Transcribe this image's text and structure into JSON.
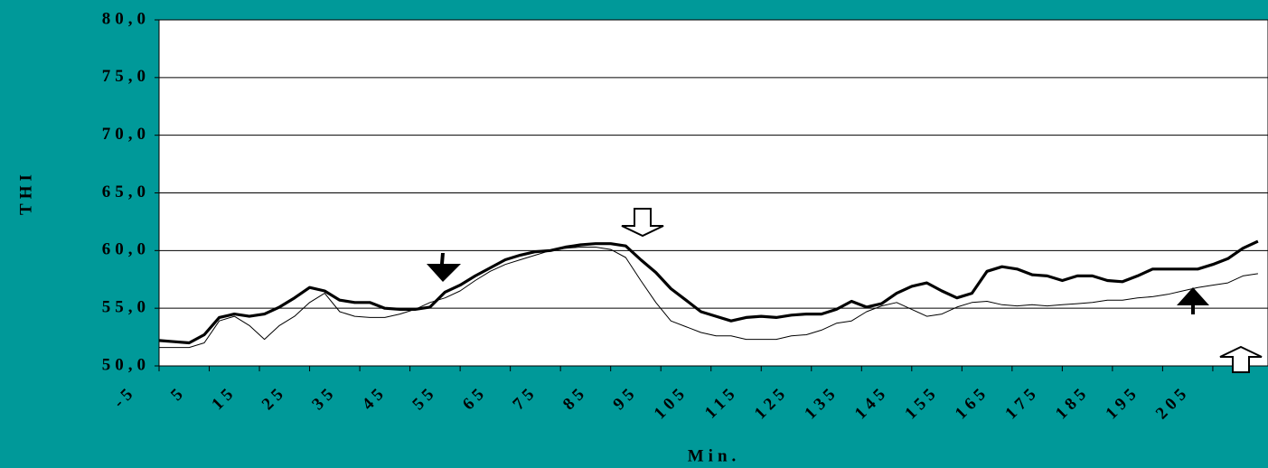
{
  "chart_data": {
    "type": "line",
    "xlabel": "Min.",
    "ylabel": "THI",
    "x": [
      -5,
      -2,
      1,
      4,
      7,
      10,
      13,
      16,
      19,
      22,
      25,
      28,
      31,
      34,
      37,
      40,
      43,
      46,
      49,
      52,
      55,
      58,
      61,
      64,
      67,
      70,
      73,
      76,
      79,
      82,
      85,
      88,
      91,
      94,
      97,
      100,
      103,
      106,
      109,
      112,
      115,
      118,
      121,
      124,
      127,
      130,
      133,
      136,
      139,
      142,
      145,
      148,
      151,
      154,
      157,
      160,
      163,
      166,
      169,
      172,
      175,
      178,
      181,
      184,
      187,
      190,
      193,
      196,
      199,
      202,
      205,
      208,
      211,
      214
    ],
    "series": [
      {
        "color": "#000000",
        "width": 3.2,
        "values": [
          52.2,
          52.1,
          52.0,
          52.7,
          54.2,
          54.5,
          54.3,
          54.5,
          55.1,
          55.9,
          56.8,
          56.5,
          55.7,
          55.5,
          55.5,
          55.0,
          54.9,
          54.9,
          55.1,
          56.4,
          57.0,
          57.8,
          58.5,
          59.2,
          59.6,
          59.9,
          60.0,
          60.3,
          60.5,
          60.6,
          60.6,
          60.4,
          59.2,
          58.1,
          56.7,
          55.7,
          54.7,
          54.3,
          53.9,
          54.2,
          54.3,
          54.2,
          54.4,
          54.5,
          54.5,
          54.9,
          55.6,
          55.1,
          55.4,
          56.3,
          56.9,
          57.2,
          56.5,
          55.9,
          56.3,
          58.2,
          58.6,
          58.4,
          57.9,
          57.8,
          57.4,
          57.8,
          57.8,
          57.4,
          57.3,
          57.8,
          58.4,
          58.4,
          58.4,
          58.4,
          58.8,
          59.3,
          60.2,
          60.8
        ]
      },
      {
        "color": "#000000",
        "width": 1,
        "values": [
          51.6,
          51.6,
          51.6,
          52.0,
          53.9,
          54.3,
          53.5,
          52.3,
          53.5,
          54.3,
          55.5,
          56.3,
          54.7,
          54.3,
          54.2,
          54.2,
          54.5,
          54.9,
          55.5,
          55.9,
          56.5,
          57.4,
          58.2,
          58.8,
          59.2,
          59.6,
          60.0,
          60.2,
          60.3,
          60.3,
          60.1,
          59.4,
          57.4,
          55.5,
          53.9,
          53.4,
          52.9,
          52.6,
          52.6,
          52.3,
          52.3,
          52.3,
          52.6,
          52.7,
          53.1,
          53.7,
          53.9,
          54.7,
          55.2,
          55.5,
          54.9,
          54.3,
          54.5,
          55.1,
          55.5,
          55.6,
          55.3,
          55.2,
          55.3,
          55.2,
          55.3,
          55.4,
          55.5,
          55.7,
          55.7,
          55.9,
          56.0,
          56.2,
          56.5,
          56.8,
          57.0,
          57.2,
          57.8,
          58.0
        ]
      }
    ],
    "xlim": [
      -5,
      216
    ],
    "xticks": [
      -5,
      5,
      15,
      25,
      35,
      45,
      55,
      65,
      75,
      85,
      95,
      105,
      115,
      125,
      135,
      145,
      155,
      165,
      175,
      185,
      195,
      205
    ],
    "ylim": [
      50,
      80
    ],
    "yticks": [
      {
        "value": 50,
        "label": "50,0"
      },
      {
        "value": 55,
        "label": "55,0"
      },
      {
        "value": 60,
        "label": "60,0"
      },
      {
        "value": 65,
        "label": "65,0"
      },
      {
        "value": 70,
        "label": "70,0"
      },
      {
        "value": 75,
        "label": "75,0"
      },
      {
        "value": 80,
        "label": "80,0"
      }
    ],
    "grid": true
  }
}
